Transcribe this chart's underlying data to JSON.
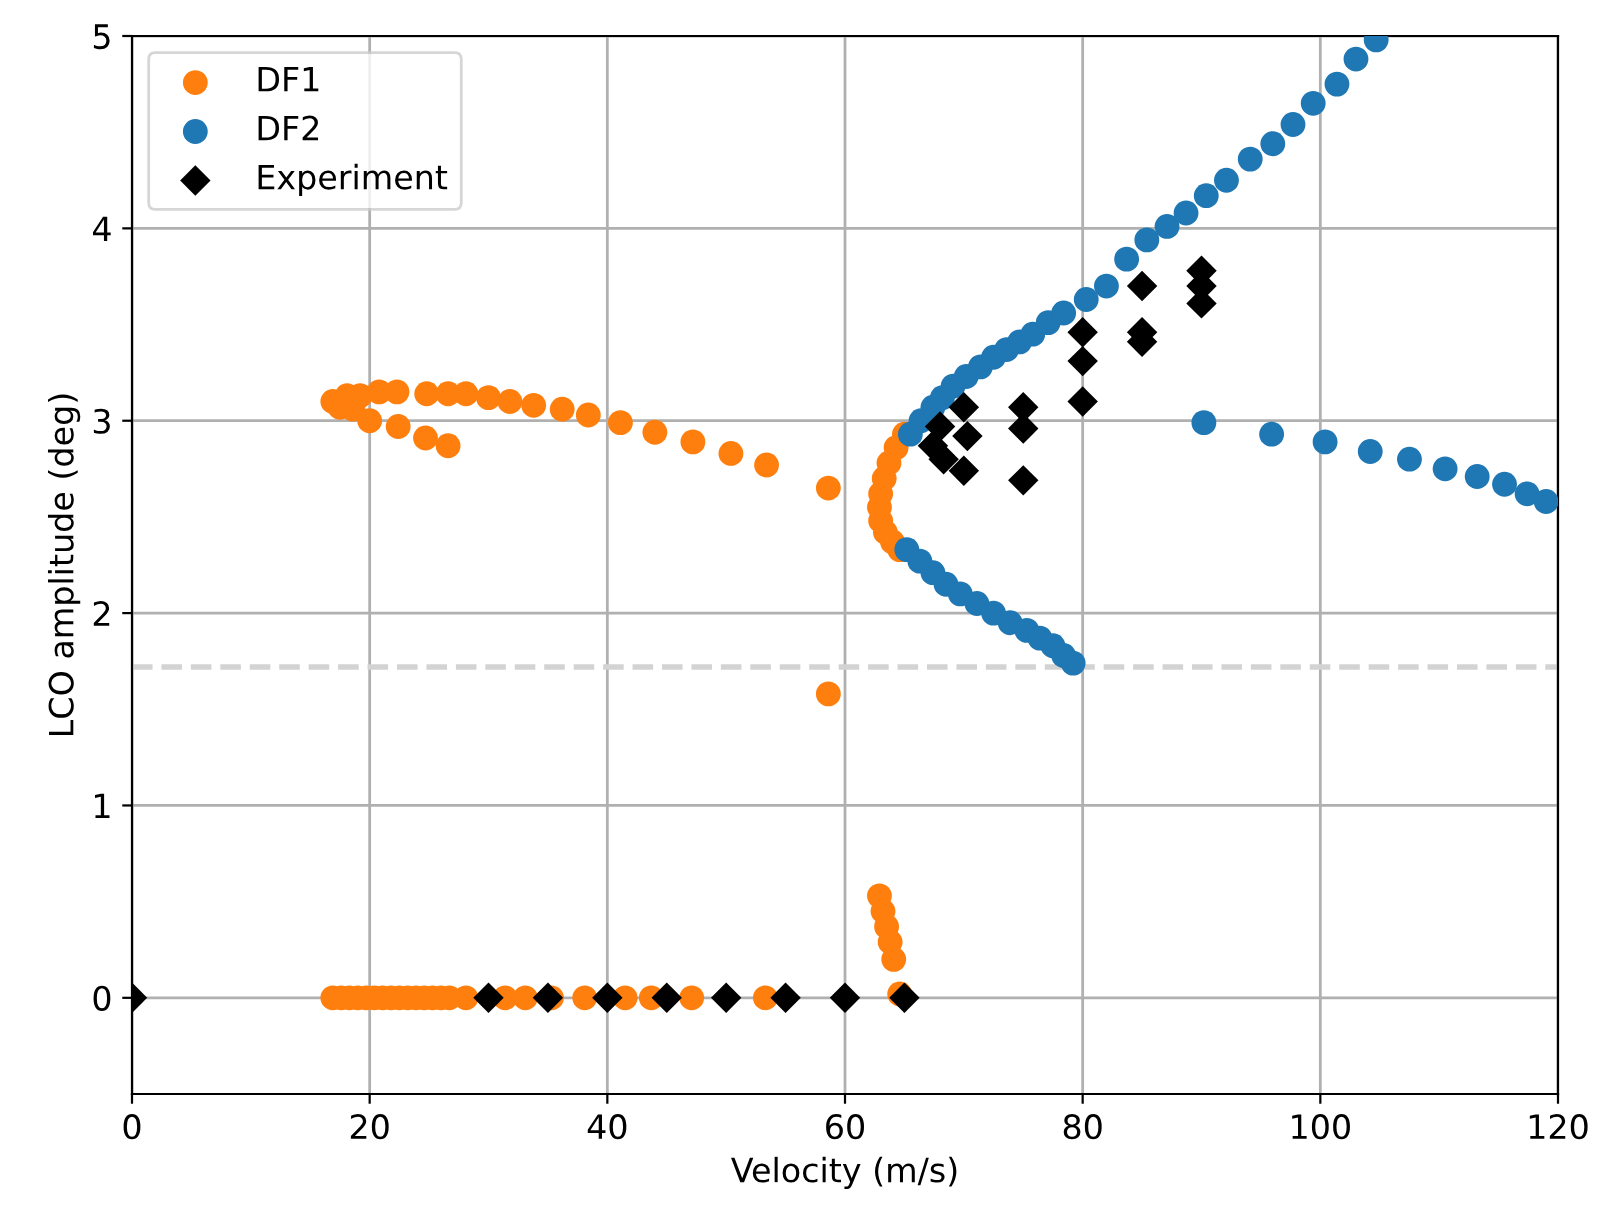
{
  "chart_data": {
    "type": "scatter",
    "xlabel": "Velocity (m/s)",
    "ylabel": "LCO amplitude (deg)",
    "xlim": [
      0,
      120
    ],
    "ylim": [
      -0.5,
      5
    ],
    "xticks": [
      0,
      20,
      40,
      60,
      80,
      100,
      120
    ],
    "yticks": [
      0,
      1,
      2,
      3,
      4,
      5
    ],
    "grid": true,
    "legend": "top left",
    "ref_lines": [
      {
        "axis": "y",
        "value": 1.72,
        "color": "#d3d3d3",
        "line_style": "dashed"
      }
    ],
    "series": [
      {
        "name": "DF1",
        "color": "#ff7f0e",
        "marker": "circle",
        "x": [
          16.9,
          17.5,
          18.1,
          18.6,
          19.2,
          20.0,
          20.8,
          22.3,
          22.4,
          24.7,
          24.8,
          26.6,
          26.6,
          28.1,
          30.0,
          31.8,
          33.8,
          36.2,
          38.4,
          41.1,
          44.0,
          47.2,
          50.4,
          53.4,
          58.6,
          58.6,
          65.0,
          64.3,
          63.7,
          63.3,
          63.0,
          62.9,
          63.0,
          63.4,
          64.0,
          64.6,
          62.9,
          63.2,
          63.5,
          63.8,
          64.1,
          64.6,
          16.9,
          17.6,
          18.3,
          19.0,
          19.7,
          20.4,
          21.1,
          21.8,
          22.5,
          23.2,
          23.9,
          24.6,
          25.3,
          26.0,
          26.7,
          28.1,
          31.4,
          33.1,
          35.3,
          38.1,
          41.5,
          43.7,
          47.1,
          53.3
        ],
        "values": [
          3.1,
          3.07,
          3.13,
          3.06,
          3.13,
          3.0,
          3.15,
          3.15,
          2.97,
          2.91,
          3.14,
          3.14,
          2.87,
          3.14,
          3.12,
          3.1,
          3.08,
          3.06,
          3.03,
          2.99,
          2.94,
          2.89,
          2.83,
          2.77,
          2.65,
          1.58,
          2.93,
          2.86,
          2.78,
          2.7,
          2.62,
          2.55,
          2.48,
          2.42,
          2.37,
          2.33,
          0.53,
          0.45,
          0.37,
          0.29,
          0.2,
          0.02,
          0,
          0,
          0,
          0,
          0,
          0,
          0,
          0,
          0,
          0,
          0,
          0,
          0,
          0,
          0,
          0,
          0,
          0,
          0,
          0,
          0,
          0,
          0,
          0
        ]
      },
      {
        "name": "DF2",
        "color": "#1f77b4",
        "marker": "circle",
        "x": [
          65.5,
          66.4,
          67.4,
          68.2,
          69.1,
          70.2,
          71.4,
          72.5,
          73.6,
          74.7,
          75.8,
          77.1,
          78.4,
          80.3,
          82.0,
          83.7,
          85.4,
          87.1,
          88.7,
          90.4,
          92.1,
          94.1,
          96.0,
          97.7,
          99.4,
          101.4,
          103.0,
          104.7,
          90.2,
          95.9,
          100.4,
          104.2,
          107.5,
          110.5,
          113.2,
          115.5,
          117.4,
          119.0,
          65.2,
          66.3,
          67.4,
          68.5,
          69.7,
          71.1,
          72.5,
          73.9,
          75.3,
          76.4,
          77.5,
          78.4,
          79.2
        ],
        "values": [
          2.93,
          3.0,
          3.07,
          3.12,
          3.18,
          3.23,
          3.28,
          3.33,
          3.37,
          3.41,
          3.45,
          3.51,
          3.56,
          3.63,
          3.7,
          3.84,
          3.94,
          4.01,
          4.08,
          4.17,
          4.25,
          4.36,
          4.44,
          4.54,
          4.65,
          4.75,
          4.88,
          4.98,
          2.99,
          2.93,
          2.89,
          2.84,
          2.8,
          2.75,
          2.71,
          2.67,
          2.62,
          2.58,
          2.33,
          2.27,
          2.21,
          2.15,
          2.1,
          2.05,
          2.0,
          1.95,
          1.91,
          1.87,
          1.83,
          1.78,
          1.74
        ]
      },
      {
        "name": "Experiment",
        "color": "#000000",
        "marker": "diamond",
        "x": [
          0,
          30,
          35,
          40,
          45,
          50,
          55,
          60,
          65,
          68.0,
          67.4,
          68.3,
          70.0,
          70.3,
          70.0,
          75.0,
          75.0,
          75.0,
          80.0,
          80.0,
          80.0,
          85.0,
          85.0,
          85.0,
          90.0,
          90.0,
          90.0
        ],
        "values": [
          0,
          0,
          0,
          0,
          0,
          0,
          0,
          0,
          0,
          2.97,
          2.87,
          2.8,
          3.07,
          2.92,
          2.74,
          3.07,
          2.96,
          2.69,
          3.46,
          3.31,
          3.1,
          3.7,
          3.46,
          3.41,
          3.78,
          3.7,
          3.61
        ]
      }
    ]
  }
}
